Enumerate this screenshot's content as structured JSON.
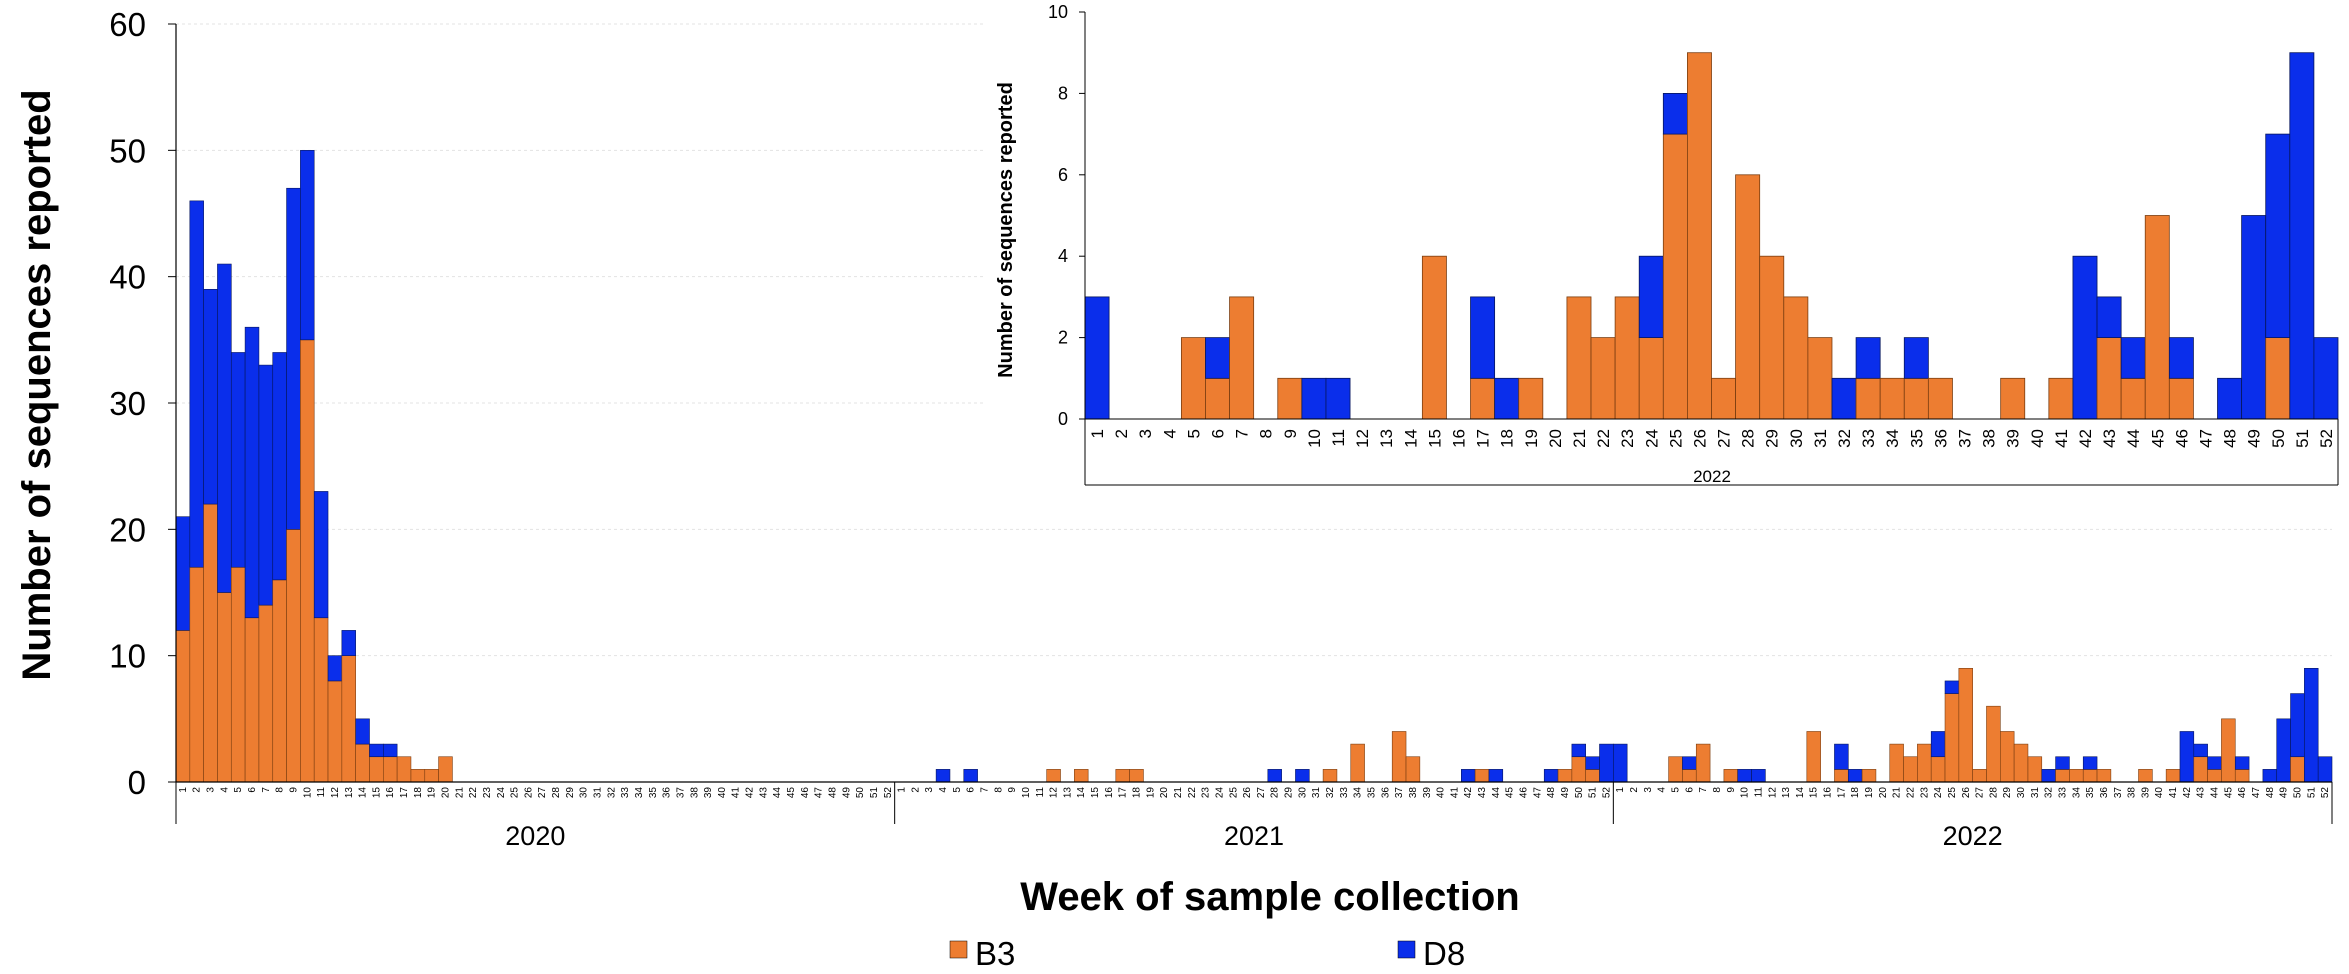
{
  "chart_data": [
    {
      "type": "bar",
      "stacked": true,
      "ylabel": "Number of sequences reported",
      "xlabel": "Week of sample collection",
      "ylim": [
        0,
        60
      ],
      "yticks": [
        0,
        10,
        20,
        30,
        40,
        50,
        60
      ],
      "grid": true,
      "legend": {
        "position": "bottom",
        "entries": [
          "B3",
          "D8"
        ]
      },
      "colors": {
        "B3": "#ED7D31",
        "D8": "#0A2EEB"
      },
      "years": [
        {
          "label": "2020",
          "series": [
            {
              "name": "B3",
              "values": [
                12,
                17,
                22,
                15,
                17,
                13,
                14,
                16,
                20,
                35,
                13,
                8,
                10,
                3,
                2,
                2,
                2,
                1,
                1,
                2,
                0,
                0,
                0,
                0,
                0,
                0,
                0,
                0,
                0,
                0,
                0,
                0,
                0,
                0,
                0,
                0,
                0,
                0,
                0,
                0,
                0,
                0,
                0,
                0,
                0,
                0,
                0,
                0,
                0,
                0,
                0,
                0
              ]
            },
            {
              "name": "D8",
              "values": [
                9,
                29,
                17,
                26,
                17,
                23,
                19,
                18,
                27,
                15,
                10,
                2,
                2,
                2,
                1,
                1,
                0,
                0,
                0,
                0,
                0,
                0,
                0,
                0,
                0,
                0,
                0,
                0,
                0,
                0,
                0,
                0,
                0,
                0,
                0,
                0,
                0,
                0,
                0,
                0,
                0,
                0,
                0,
                0,
                0,
                0,
                0,
                0,
                0,
                0,
                0,
                0
              ]
            }
          ]
        },
        {
          "label": "2021",
          "series": [
            {
              "name": "B3",
              "values": [
                0,
                0,
                0,
                0,
                0,
                0,
                0,
                0,
                0,
                0,
                0,
                1,
                0,
                1,
                0,
                0,
                1,
                1,
                0,
                0,
                0,
                0,
                0,
                0,
                0,
                0,
                0,
                0,
                0,
                0,
                0,
                1,
                0,
                3,
                0,
                0,
                4,
                2,
                0,
                0,
                0,
                0,
                1,
                0,
                0,
                0,
                0,
                0,
                1,
                2,
                1,
                0
              ]
            },
            {
              "name": "D8",
              "values": [
                0,
                0,
                0,
                1,
                0,
                1,
                0,
                0,
                0,
                0,
                0,
                0,
                0,
                0,
                0,
                0,
                0,
                0,
                0,
                0,
                0,
                0,
                0,
                0,
                0,
                0,
                0,
                1,
                0,
                1,
                0,
                0,
                0,
                0,
                0,
                0,
                0,
                0,
                0,
                0,
                0,
                1,
                0,
                1,
                0,
                0,
                0,
                1,
                0,
                1,
                1,
                3
              ]
            }
          ]
        },
        {
          "label": "2022",
          "series": [
            {
              "name": "B3",
              "values": [
                0,
                0,
                0,
                0,
                2,
                1,
                3,
                0,
                1,
                0,
                0,
                0,
                0,
                0,
                4,
                0,
                1,
                0,
                1,
                0,
                3,
                2,
                3,
                2,
                7,
                9,
                1,
                6,
                4,
                3,
                2,
                0,
                1,
                1,
                1,
                1,
                0,
                0,
                1,
                0,
                1,
                0,
                2,
                1,
                5,
                1,
                0,
                0,
                0,
                2,
                0,
                0
              ]
            },
            {
              "name": "D8",
              "values": [
                3,
                0,
                0,
                0,
                0,
                1,
                0,
                0,
                0,
                1,
                1,
                0,
                0,
                0,
                0,
                0,
                2,
                1,
                0,
                0,
                0,
                0,
                0,
                2,
                1,
                0,
                0,
                0,
                0,
                0,
                0,
                1,
                1,
                0,
                1,
                0,
                0,
                0,
                0,
                0,
                0,
                4,
                1,
                1,
                0,
                1,
                0,
                1,
                5,
                5,
                9,
                2
              ]
            }
          ]
        }
      ],
      "weeks_label_count": 52
    },
    {
      "type": "bar",
      "stacked": true,
      "ylabel": "Number of sequences reported",
      "xlabel": "2022",
      "ylim": [
        0,
        10
      ],
      "yticks": [
        0,
        2,
        4,
        6,
        8,
        10
      ],
      "categories": [
        "1",
        "2",
        "3",
        "4",
        "5",
        "6",
        "7",
        "8",
        "9",
        "10",
        "11",
        "12",
        "13",
        "14",
        "15",
        "16",
        "17",
        "18",
        "19",
        "20",
        "21",
        "22",
        "23",
        "24",
        "25",
        "26",
        "27",
        "28",
        "29",
        "30",
        "31",
        "32",
        "33",
        "34",
        "35",
        "36",
        "37",
        "38",
        "39",
        "40",
        "41",
        "42",
        "43",
        "44",
        "45",
        "46",
        "47",
        "48",
        "49",
        "50",
        "51",
        "52"
      ],
      "series": [
        {
          "name": "B3",
          "values": [
            0,
            0,
            0,
            0,
            2,
            1,
            3,
            0,
            1,
            0,
            0,
            0,
            0,
            0,
            4,
            0,
            1,
            0,
            1,
            0,
            3,
            2,
            3,
            2,
            7,
            9,
            1,
            6,
            4,
            3,
            2,
            0,
            1,
            1,
            1,
            1,
            0,
            0,
            1,
            0,
            1,
            0,
            2,
            1,
            5,
            1,
            0,
            0,
            0,
            2,
            0,
            0
          ]
        },
        {
          "name": "D8",
          "values": [
            3,
            0,
            0,
            0,
            0,
            1,
            0,
            0,
            0,
            1,
            1,
            0,
            0,
            0,
            0,
            0,
            2,
            1,
            0,
            0,
            0,
            0,
            0,
            2,
            1,
            0,
            0,
            0,
            0,
            0,
            0,
            1,
            1,
            0,
            1,
            0,
            0,
            0,
            0,
            0,
            0,
            4,
            1,
            1,
            0,
            1,
            0,
            1,
            5,
            5,
            9,
            2
          ]
        }
      ]
    }
  ]
}
